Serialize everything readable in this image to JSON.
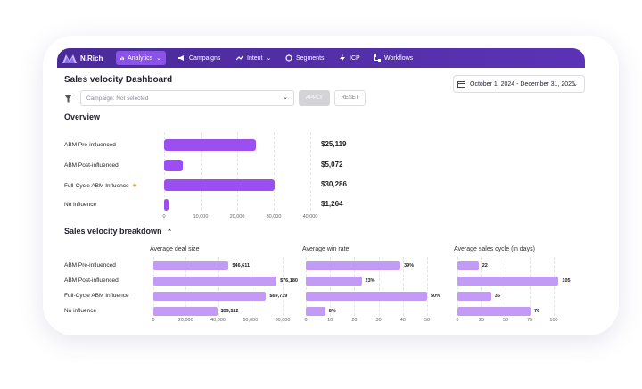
{
  "colors": {
    "nav": "#4a2a98",
    "active": "#8a52e8",
    "bar": "#9b4ff0",
    "bar_light": "#c39af5"
  },
  "nav": {
    "logo": "N.Rich",
    "items": [
      {
        "label": "Analytics",
        "icon": "bar-chart-icon",
        "chevron": "⌄"
      },
      {
        "label": "Campaigns",
        "icon": "megaphone-icon",
        "chevron": ""
      },
      {
        "label": "Intent",
        "icon": "trend-icon",
        "chevron": "⌄"
      },
      {
        "label": "Segments",
        "icon": "segments-icon",
        "chevron": ""
      },
      {
        "label": "ICP",
        "icon": "bolt-icon",
        "chevron": ""
      },
      {
        "label": "Workflows",
        "icon": "workflow-icon",
        "chevron": ""
      }
    ]
  },
  "page": {
    "title": "Sales velocity Dashboard",
    "date_range": "October 1, 2024 - December 31, 2025",
    "campaign_placeholder": "Campaign: Not selected",
    "apply_label": "APPLY",
    "reset_label": "RESET"
  },
  "overview": {
    "title": "Overview",
    "chart_data": {
      "type": "bar",
      "categories": [
        "ABM Pre-influenced",
        "ABM Post-influenced",
        "Full-Cycle ABM Influence",
        "No influence"
      ],
      "values": [
        25119,
        5072,
        30286,
        1264
      ],
      "value_labels": [
        "$25,119",
        "$5,072",
        "$30,286",
        "$1,264"
      ],
      "xlim": [
        0,
        40000
      ],
      "ticks": [
        "0",
        "10,000",
        "20,000",
        "30,000",
        "40,000"
      ]
    }
  },
  "breakdown": {
    "title": "Sales velocity breakdown",
    "toggle": "⌃",
    "row_labels": [
      "ABM Pre-influenced",
      "ABM Post-influenced",
      "Full-Cycle ABM Influence",
      "No influence"
    ],
    "chart_data": [
      {
        "type": "bar",
        "title": "Average deal size",
        "values": [
          46611,
          76180,
          69739,
          39522
        ],
        "value_labels": [
          "$46,611",
          "$76,180",
          "$69,739",
          "$39,522"
        ],
        "xlim": [
          0,
          80000
        ],
        "ticks": [
          "0",
          "20,000",
          "40,000",
          "60,000",
          "80,000"
        ]
      },
      {
        "type": "bar",
        "title": "Average win rate",
        "values": [
          39,
          23,
          50,
          8
        ],
        "value_labels": [
          "39%",
          "23%",
          "50%",
          "8%"
        ],
        "xlim": [
          0,
          50
        ],
        "ticks": [
          "0",
          "10",
          "20",
          "30",
          "40",
          "50"
        ]
      },
      {
        "type": "bar",
        "title": "Average sales cycle (in days)",
        "values": [
          22,
          105,
          35,
          76
        ],
        "value_labels": [
          "22",
          "105",
          "35",
          "76"
        ],
        "xlim": [
          0,
          100
        ],
        "ticks": [
          "0",
          "25",
          "50",
          "75",
          "100"
        ]
      }
    ]
  }
}
